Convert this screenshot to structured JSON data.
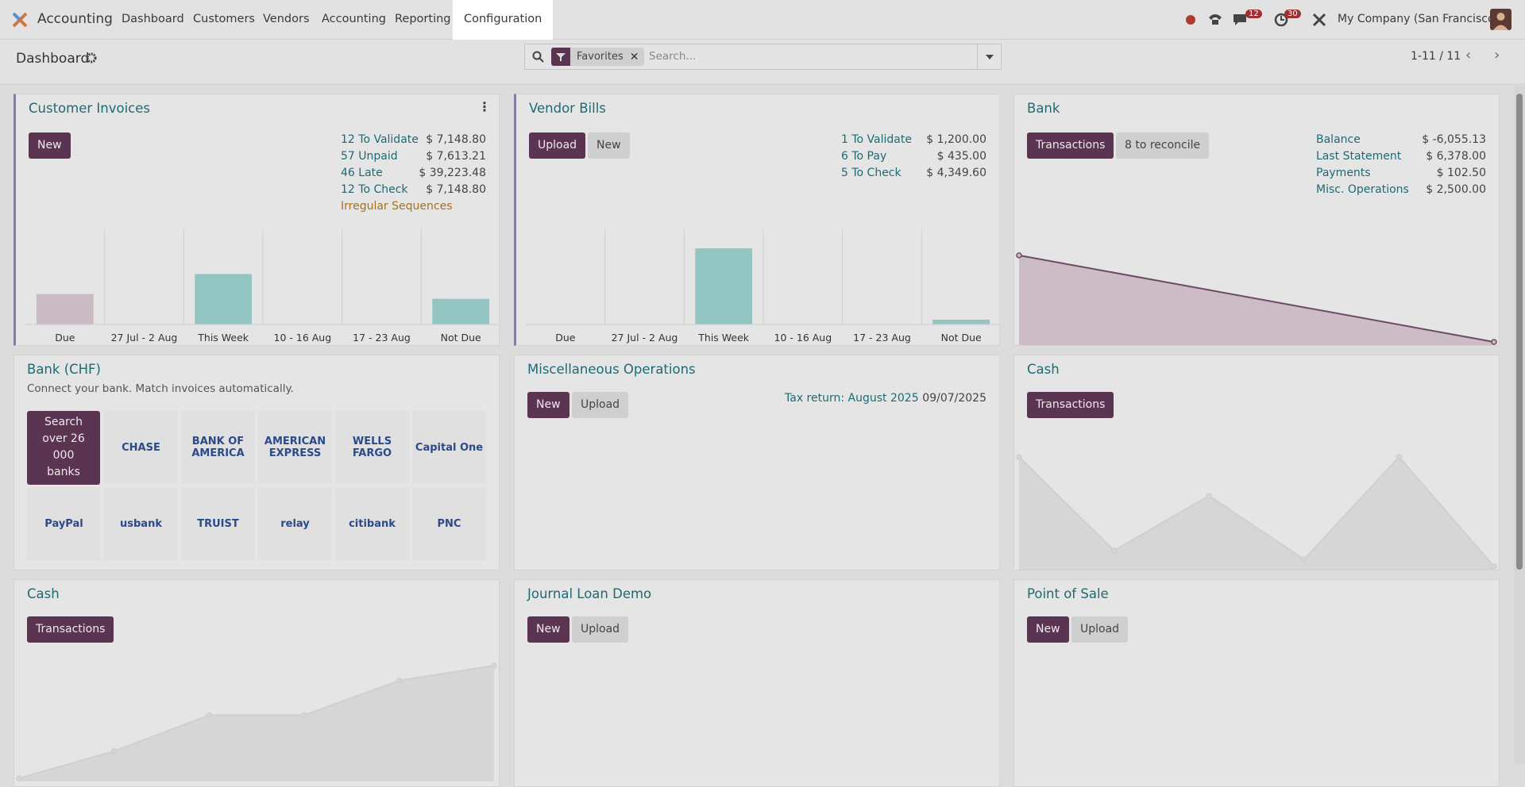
{
  "navbar": {
    "app": "Accounting",
    "menu": [
      "Dashboard",
      "Customers",
      "Vendors",
      "Accounting",
      "Reporting",
      "Configuration"
    ],
    "active_menu": 5,
    "messages_badge": "12",
    "activities_badge": "30",
    "company": "My Company (San Francisco)"
  },
  "control_panel": {
    "breadcrumb": "Dashboard",
    "facet": "Favorites",
    "search_placeholder": "Search...",
    "pager": "1-11 / 11"
  },
  "cards": [
    {
      "title": "Customer Invoices",
      "highlight": true,
      "menu": true,
      "buttons": [
        {
          "label": "New",
          "primary": true
        }
      ],
      "stats": [
        {
          "label": "12 To Validate",
          "amount": "$ 7,148.80"
        },
        {
          "label": "57 Unpaid",
          "amount": "$ 7,613.21"
        },
        {
          "label": "46 Late",
          "amount": "$ 39,223.48"
        },
        {
          "label": "12 To Check",
          "amount": "$ 7,148.80"
        },
        {
          "label": "Irregular Sequences",
          "warning": true
        }
      ],
      "graph": {
        "type": "bar",
        "categories": [
          "Due",
          "27 Jul - 2 Aug",
          "This Week",
          "10 - 16 Aug",
          "17 - 23 Aug",
          "Not Due"
        ],
        "values": [
          32,
          0,
          53,
          0,
          0,
          27
        ],
        "ylim": [
          0,
          100
        ],
        "past_color": "#c9bac4",
        "color": "#93c5c2"
      }
    },
    {
      "title": "Vendor Bills",
      "highlight": true,
      "buttons": [
        {
          "label": "Upload",
          "primary": true
        },
        {
          "label": "New",
          "primary": false
        }
      ],
      "stats": [
        {
          "label": "1 To Validate",
          "amount": "$ 1,200.00"
        },
        {
          "label": "6 To Pay",
          "amount": "$ 435.00"
        },
        {
          "label": "5 To Check",
          "amount": "$ 4,349.60"
        }
      ],
      "graph": {
        "type": "bar",
        "categories": [
          "Due",
          "27 Jul - 2 Aug",
          "This Week",
          "10 - 16 Aug",
          "17 - 23 Aug",
          "Not Due"
        ],
        "values": [
          0,
          0,
          80,
          0,
          0,
          5
        ],
        "ylim": [
          0,
          100
        ],
        "past_color": "#c9bac4",
        "color": "#93c5c2"
      }
    },
    {
      "title": "Bank",
      "buttons": [
        {
          "label": "Transactions",
          "primary": true
        },
        {
          "label": "8 to reconcile",
          "primary": false
        }
      ],
      "stats": [
        {
          "label": "Balance",
          "amount": "$ -6,055.13"
        },
        {
          "label": "Last Statement",
          "amount": "$ 6,378.00"
        },
        {
          "label": "Payments",
          "amount": "$ 102.50"
        },
        {
          "label": "Misc. Operations",
          "amount": "$ 2,500.00"
        }
      ],
      "graph": {
        "type": "line",
        "values": [
          88,
          0
        ],
        "ylim": [
          0,
          100
        ],
        "fill": "#cbbcc6",
        "color": "#6e4a63"
      }
    },
    {
      "title": "Bank (CHF)",
      "subtitle": "Connect your bank. Match invoices automatically.",
      "search_banks": "Search over 26 000 banks",
      "banks": [
        "CHASE",
        "BANK OF AMERICA",
        "AMERICAN EXPRESS",
        "WELLS FARGO",
        "Capital One",
        "PayPal",
        "usbank",
        "TRUIST",
        "relay",
        "citibank",
        "PNC"
      ]
    },
    {
      "title": "Miscellaneous Operations",
      "buttons": [
        {
          "label": "New",
          "primary": true
        },
        {
          "label": "Upload",
          "primary": false
        }
      ],
      "stats": [
        {
          "label": "Tax return: August 2025",
          "amount": "09/07/2025"
        }
      ]
    },
    {
      "title": "Cash",
      "buttons": [
        {
          "label": "Transactions",
          "primary": true
        }
      ],
      "graph": {
        "type": "line",
        "values": [
          62,
          9,
          40,
          4,
          62,
          0
        ],
        "ylim": [
          0,
          62
        ],
        "fill": "#d6d6d6",
        "color": "#cfcfcf"
      }
    },
    {
      "title": "Cash",
      "buttons": [
        {
          "label": "Transactions",
          "primary": true
        }
      ],
      "graph": {
        "type": "line",
        "values": [
          0,
          18,
          42,
          42,
          65,
          75
        ],
        "ylim": [
          0,
          75
        ],
        "fill": "#d6d6d6",
        "color": "#cfcfcf"
      }
    },
    {
      "title": "Journal Loan Demo",
      "buttons": [
        {
          "label": "New",
          "primary": true
        },
        {
          "label": "Upload",
          "primary": false
        }
      ]
    },
    {
      "title": "Point of Sale",
      "buttons": [
        {
          "label": "New",
          "primary": true
        },
        {
          "label": "Upload",
          "primary": false
        }
      ]
    }
  ]
}
